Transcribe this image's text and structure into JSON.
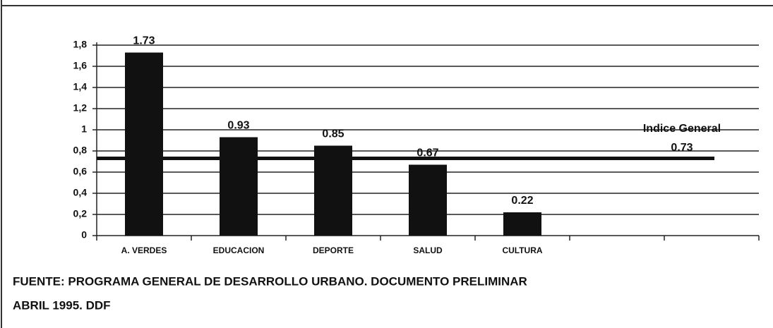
{
  "chart_data": {
    "type": "bar",
    "categories": [
      "A. VERDES",
      "EDUCACION",
      "DEPORTE",
      "SALUD",
      "CULTURA",
      null,
      null
    ],
    "values": [
      1.73,
      0.93,
      0.85,
      0.67,
      0.22,
      null,
      null
    ],
    "color": "#111111",
    "ylim": [
      0,
      1.8
    ],
    "yticks": [
      0,
      {
        "value": 0.2,
        "label": "0,2"
      },
      {
        "value": 0.4,
        "label": "0,4"
      },
      {
        "value": 0.6,
        "label": "0,6"
      },
      {
        "value": 0.8,
        "label": "0,8"
      },
      1,
      {
        "value": 1.2,
        "label": "1,2"
      },
      {
        "value": 1.4,
        "label": "1,4"
      },
      {
        "value": 1.6,
        "label": "1,6"
      },
      {
        "value": 1.8,
        "label": "1,8"
      }
    ],
    "grid": true,
    "reference_line": {
      "label": "Indice General",
      "value": 0.73
    },
    "source": [
      "FUENTE: PROGRAMA GENERAL DE DESARROLLO URBANO. DOCUMENTO PRELIMINAR",
      "ABRIL 1995. DDF"
    ]
  }
}
